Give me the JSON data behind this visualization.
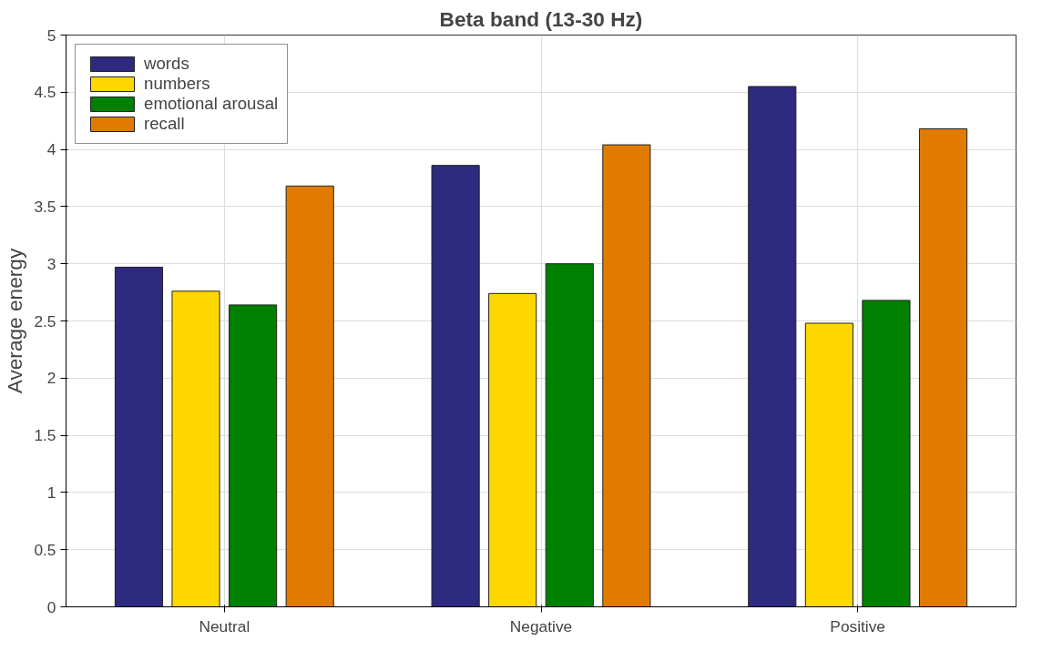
{
  "chart_data": {
    "type": "bar",
    "title": "Beta band (13-30 Hz)",
    "ylabel": "Average energy",
    "categories": [
      "Neutral",
      "Negative",
      "Positive"
    ],
    "series": [
      {
        "name": "words",
        "color": "#2e2a80",
        "values": [
          2.97,
          3.86,
          4.55
        ]
      },
      {
        "name": "numbers",
        "color": "#ffd700",
        "values": [
          2.76,
          2.74,
          2.48
        ]
      },
      {
        "name": "emotional arousal",
        "color": "#008000",
        "values": [
          2.64,
          3.0,
          2.68
        ]
      },
      {
        "name": "recall",
        "color": "#e07b00",
        "values": [
          3.68,
          4.04,
          4.18
        ]
      }
    ],
    "ylim": [
      0,
      5
    ],
    "yticks": [
      0,
      0.5,
      1,
      1.5,
      2,
      2.5,
      3,
      3.5,
      4,
      4.5,
      5
    ],
    "grid": true,
    "legend": "top left"
  }
}
